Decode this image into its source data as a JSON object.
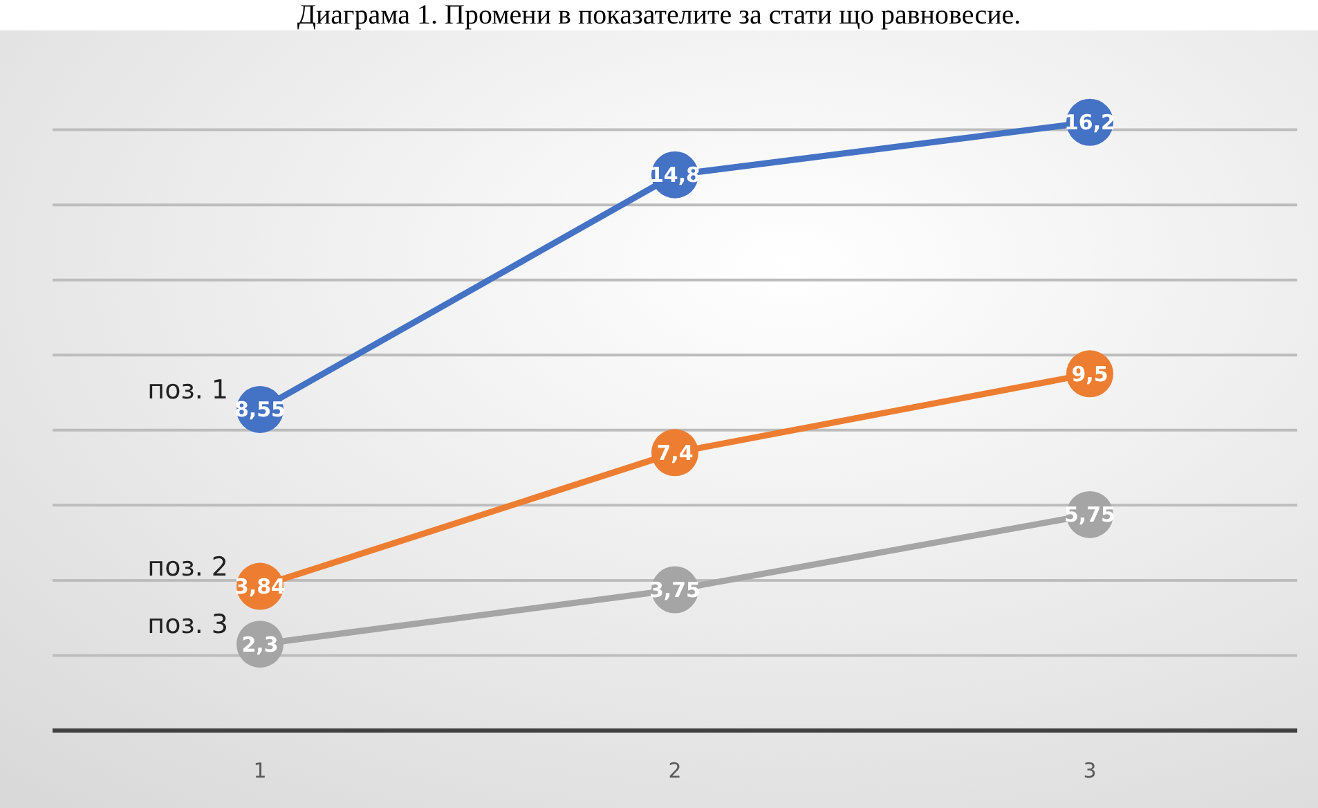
{
  "chart_data": {
    "type": "line",
    "title": "Диаграма 1. Промени в показателите за стати що равновесие.",
    "categories": [
      "1",
      "2",
      "3"
    ],
    "series": [
      {
        "name": "поз. 1",
        "color": "#4472c4",
        "values": [
          8.55,
          14.8,
          16.2
        ],
        "value_labels": [
          "8,55",
          "14,8",
          "16,2"
        ]
      },
      {
        "name": "поз. 2",
        "color": "#ed7d31",
        "values": [
          3.84,
          7.4,
          9.5
        ],
        "value_labels": [
          "3,84",
          "7,4",
          "9,5"
        ]
      },
      {
        "name": "поз. 3",
        "color": "#a5a5a5",
        "values": [
          2.3,
          3.75,
          5.75
        ],
        "value_labels": [
          "2,3",
          "3,75",
          "5,75"
        ]
      }
    ],
    "grid": "y",
    "tick_labels": "x",
    "marker": "circle",
    "line_style": "solid"
  }
}
